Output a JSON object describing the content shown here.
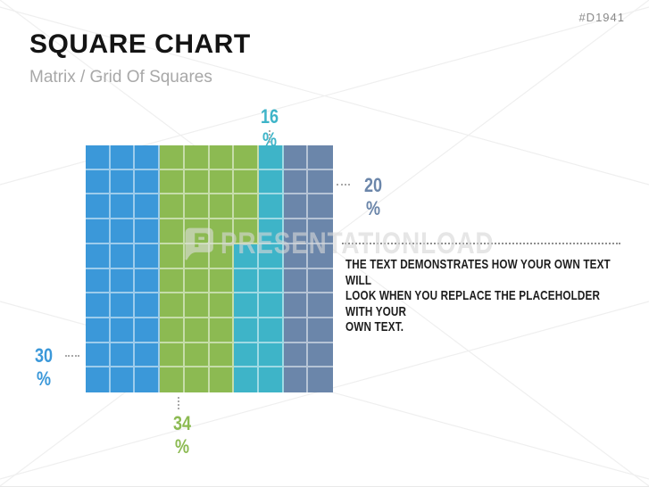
{
  "slide": {
    "code": "#D1941",
    "title": "SQUARE CHART",
    "subtitle": "Matrix / Grid Of Squares"
  },
  "watermark": {
    "text": "PRESENTATIONLOAD"
  },
  "text_block": {
    "full_text": "THE TEXT DEMONSTRATES HOW YOUR OWN TEXT WILL LOOK WHEN YOU REPLACE THE PLACEHOLDER WITH YOUR OWN TEXT.",
    "lines": [
      "THE TEXT DEMONSTRATES HOW YOUR OWN TEXT WILL",
      "LOOK WHEN YOU REPLACE THE PLACEHOLDER WITH YOUR",
      "OWN TEXT."
    ]
  },
  "chart_data": {
    "type": "waffle",
    "title": "Square Chart - Matrix / Grid Of Squares",
    "grid": {
      "rows": 10,
      "cols": 10,
      "fill_order": "column-major, left to right, top to bottom in each column"
    },
    "grid_line_color": "rgba(255,255,255,0.5)",
    "leader_line_color": "#a9a9a9",
    "series": [
      {
        "name": "blue-segment",
        "value": 30,
        "label": "30 %",
        "color": "#3b98d9",
        "label_position": "left"
      },
      {
        "name": "green-segment",
        "value": 34,
        "label": "34 %",
        "color": "#8cba52",
        "label_position": "bottom"
      },
      {
        "name": "teal-segment",
        "value": 16,
        "label": "16 %",
        "color": "#3eb4c8",
        "label_position": "top"
      },
      {
        "name": "slate-segment",
        "value": 20,
        "label": "20 %",
        "color": "#6b86aa",
        "label_position": "right"
      }
    ]
  }
}
